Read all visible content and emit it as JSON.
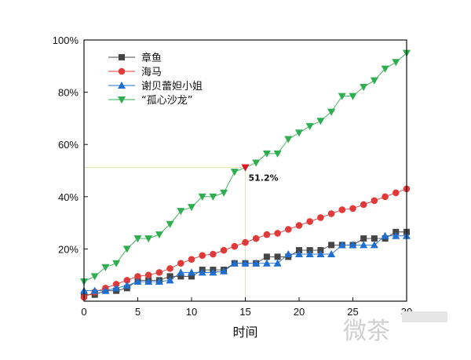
{
  "chart_data": {
    "type": "line",
    "xlabel": "时间",
    "ylabel": "",
    "xlim": [
      0,
      30
    ],
    "ylim": [
      0,
      100
    ],
    "x_ticks": [
      0,
      5,
      10,
      15,
      20,
      25,
      30
    ],
    "y_ticks": [
      20,
      40,
      60,
      80,
      100
    ],
    "y_tick_labels": [
      "20%",
      "40%",
      "60%",
      "80%",
      "100%"
    ],
    "grid": false,
    "legend_position": "top-left",
    "x": [
      0,
      1,
      2,
      3,
      4,
      5,
      6,
      7,
      8,
      9,
      10,
      11,
      12,
      13,
      14,
      15,
      16,
      17,
      18,
      19,
      20,
      21,
      22,
      23,
      24,
      25,
      26,
      27,
      28,
      29,
      30
    ],
    "series": [
      {
        "name": "章鱼",
        "marker": "square",
        "color": "#454545",
        "values": [
          2.5,
          2.5,
          4,
          4,
          5,
          8,
          8,
          8,
          9.5,
          9.5,
          9.5,
          12,
          12,
          12,
          14.5,
          14.5,
          14.5,
          17,
          17,
          17,
          19.5,
          19.5,
          19.5,
          21.5,
          21.5,
          21.5,
          24,
          24,
          24,
          26.5,
          26.5
        ]
      },
      {
        "name": "海马",
        "marker": "circle",
        "color": "#e03a3a",
        "values": [
          1.5,
          3.5,
          5,
          6.5,
          8,
          9.5,
          10,
          11,
          12.5,
          14.5,
          16,
          17.5,
          18,
          19.5,
          21,
          22.5,
          24,
          25.5,
          26,
          27.5,
          29,
          30.5,
          32,
          33.5,
          35,
          35.5,
          37,
          38.5,
          40,
          41.5,
          43
        ]
      },
      {
        "name": "谢贝蕾妲小姐",
        "marker": "triangle-up",
        "color": "#1f6fd1",
        "values": [
          4,
          4,
          4,
          5,
          6,
          7.5,
          7.5,
          7.5,
          8,
          11,
          11,
          11,
          11,
          11.5,
          14.5,
          14.5,
          14.5,
          14.5,
          14.5,
          18,
          18,
          18,
          18,
          18,
          21.5,
          21.5,
          21.5,
          21.5,
          25,
          25,
          25
        ]
      },
      {
        "name": "“孤心沙龙”",
        "marker": "triangle-down",
        "color": "#2fae50",
        "values": [
          7.5,
          9.5,
          13,
          14.5,
          20,
          24,
          24,
          25.5,
          29.5,
          34.5,
          36,
          40,
          40,
          41.5,
          49.5,
          51.2,
          53,
          56.5,
          56.5,
          62,
          64.5,
          67,
          69,
          72.5,
          78.5,
          78.5,
          82,
          84.5,
          89,
          91.5,
          95
        ]
      }
    ],
    "annotations": [
      {
        "x": 15,
        "y": 51.2,
        "label": "51.2%",
        "marker_color": "#e0141f"
      }
    ]
  }
}
